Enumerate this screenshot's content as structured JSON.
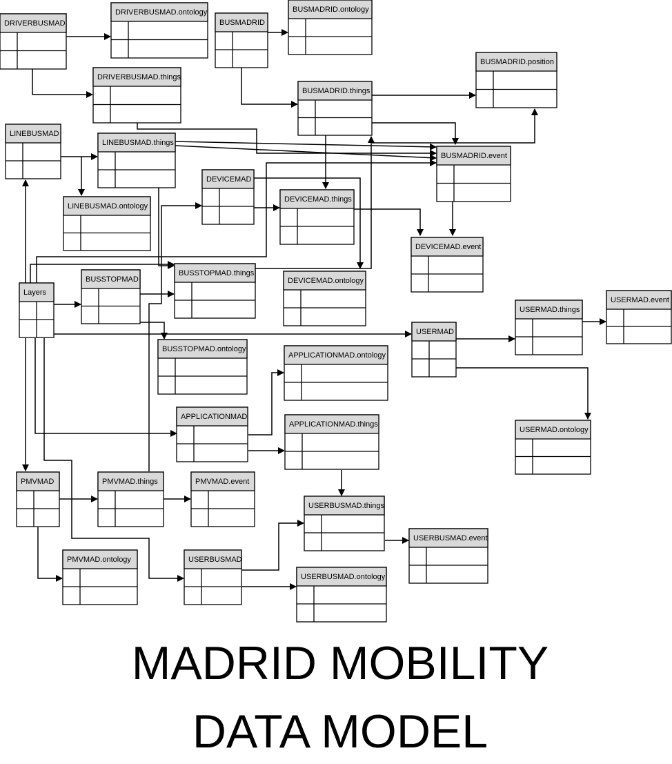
{
  "title": {
    "line1": "MADRID MOBILITY",
    "line2": "DATA MODEL"
  },
  "colors": {
    "header_fill": "#d9d9d9",
    "line": "#000000",
    "background": "#ffffff"
  },
  "tables": {
    "driverbusmad": "DRIVERBUSMAD",
    "driverbusmad_ontology": "DRIVERBUSMAD.ontology",
    "busmadrid": "BUSMADRID",
    "busmadrid_ontology": "BUSMADRID.ontology",
    "busmadrid_position": "BUSMADRID.position",
    "driverbusmad_things": "DRIVERBUSMAD.things",
    "busmadrid_things": "BUSMADRID.things",
    "linebusmad": "LINEBUSMAD",
    "linebusmad_things": "LINEBUSMAD.things",
    "busmadrid_event": "BUSMADRID.event",
    "devicemad": "DEVICEMAD",
    "devicemad_things": "DEVICEMAD.things",
    "linebusmad_ontology": "LINEBUSMAD.ontology",
    "devicemad_event": "DEVICEMAD.event",
    "busstopmad": "BUSSTOPMAD",
    "busstopmad_things": "BUSSTOPMAD.things",
    "devicemad_ontology": "DEVICEMAD.ontology",
    "layers": "Layers",
    "usermad_things": "USERMAD.things",
    "usermad_event": "USERMAD.event",
    "usermad": "USERMAD",
    "busstopmad_ontology": "BUSSTOPMAD.ontology",
    "applicationmad_ontology": "APPLICATIONMAD.ontology",
    "applicationmad": "APPLICATIONMAD",
    "applicationmad_things": "APPLICATIONMAD.things",
    "usermad_ontology": "USERMAD.ontology",
    "pmvmad": "PMVMAD",
    "pmvmad_things": "PMVMAD.things",
    "pmvmad_event": "PMVMAD.event",
    "userbusmad_things": "USERBUSMAD.things",
    "userbusmad_event": "USERBUSMAD.event",
    "pmvmad_ontology": "PMVMAD.ontology",
    "userbusmad": "USERBUSMAD",
    "userbusmad_ontology": "USERBUSMAD.ontology"
  }
}
